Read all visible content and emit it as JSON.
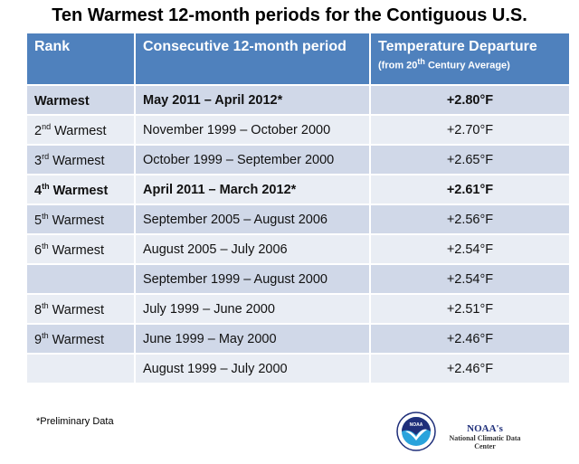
{
  "title": "Ten Warmest 12-month periods for the Contiguous U.S.",
  "table": {
    "headers": {
      "rank": "Rank",
      "period": "Consecutive 12-month period",
      "departure": "Temperature Departure",
      "departure_sub_pre": "(from 20",
      "departure_sub_sup": "th",
      "departure_sub_post": " Century Average)"
    },
    "rows": [
      {
        "rank_num": "",
        "rank_sup": "",
        "rank_text": "Warmest",
        "period": "May 2011 – April 2012*",
        "departure": "+2.80°F",
        "bold": true
      },
      {
        "rank_num": "2",
        "rank_sup": "nd",
        "rank_text": " Warmest",
        "period": "November 1999 – October 2000",
        "departure": "+2.70°F",
        "bold": false
      },
      {
        "rank_num": "3",
        "rank_sup": "rd",
        "rank_text": " Warmest",
        "period": "October 1999 – September 2000",
        "departure": "+2.65°F",
        "bold": false
      },
      {
        "rank_num": "4",
        "rank_sup": "th",
        "rank_text": " Warmest",
        "period": "April 2011 – March 2012*",
        "departure": "+2.61°F",
        "bold": true
      },
      {
        "rank_num": "5",
        "rank_sup": "th",
        "rank_text": " Warmest",
        "period": "September 2005 – August 2006",
        "departure": "+2.56°F",
        "bold": false
      },
      {
        "rank_num": "6",
        "rank_sup": "th",
        "rank_text": " Warmest",
        "period": "August 2005 – July 2006",
        "departure": "+2.54°F",
        "bold": false
      },
      {
        "rank_num": "",
        "rank_sup": "",
        "rank_text": "",
        "period": "September 1999 – August 2000",
        "departure": "+2.54°F",
        "bold": false
      },
      {
        "rank_num": "8",
        "rank_sup": "th",
        "rank_text": " Warmest",
        "period": "July 1999 – June 2000",
        "departure": "+2.51°F",
        "bold": false
      },
      {
        "rank_num": "9",
        "rank_sup": "th",
        "rank_text": " Warmest",
        "period": "June 1999 – May 2000",
        "departure": "+2.46°F",
        "bold": false
      },
      {
        "rank_num": "",
        "rank_sup": "",
        "rank_text": "",
        "period": "August 1999 – July 2000",
        "departure": "+2.46°F",
        "bold": false
      }
    ]
  },
  "footnote": "*Preliminary Data",
  "logo": {
    "emblem_text": "NOAA",
    "name": "NOAA's",
    "subtitle": "National Climatic Data Center"
  },
  "colors": {
    "header": "#4f81bd",
    "row_odd": "#d0d8e8",
    "row_even": "#e9edf4"
  }
}
